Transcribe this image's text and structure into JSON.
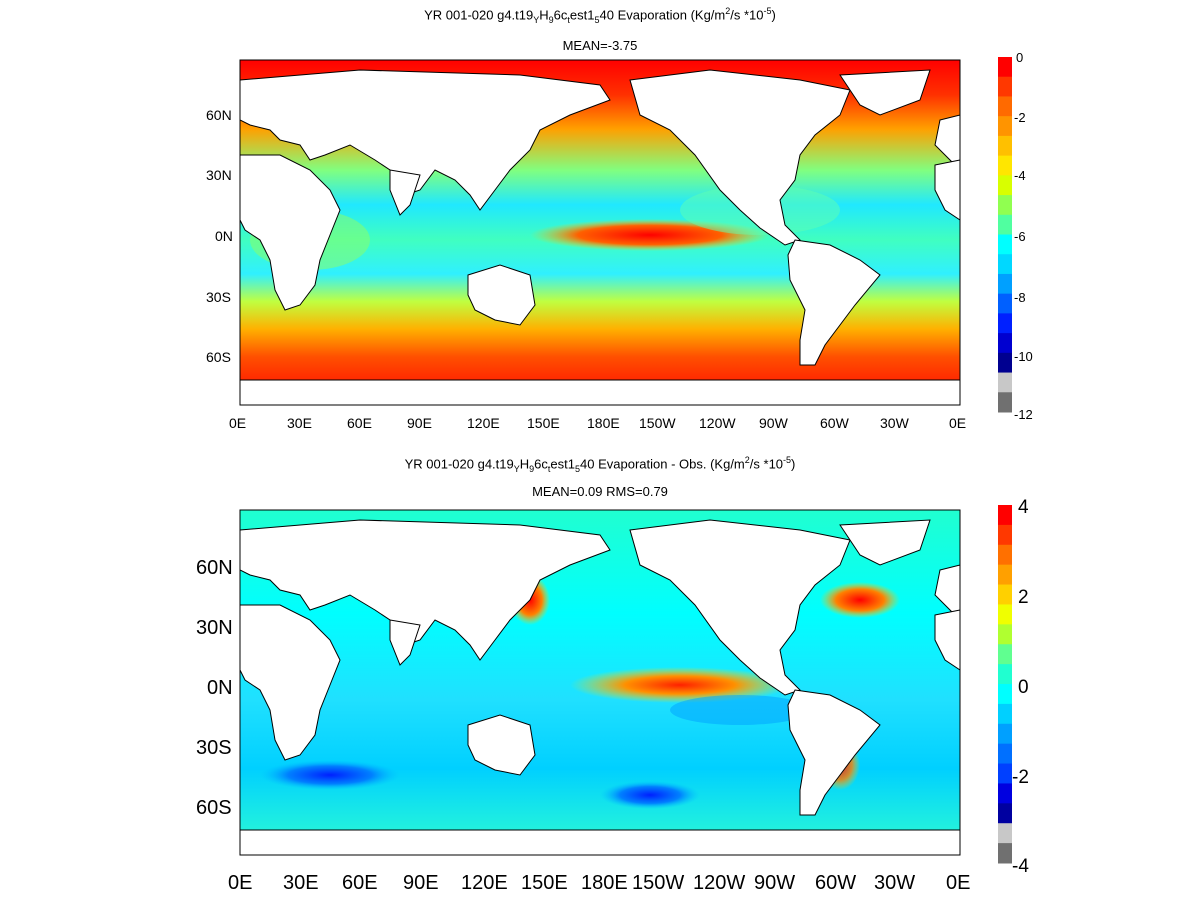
{
  "panel1": {
    "title_prefix": "YR 001-020 g4.t19",
    "title_mid1": "H",
    "title_mid2": "6c",
    "title_mid3": "est1",
    "title_mid4": "40  Evaporation (Kg/m",
    "title_tail": "/s *10",
    "title_sub_y": "Y",
    "title_sub_9": "9",
    "title_sub_t": "t",
    "title_sub_5": "5",
    "title_sup_2": "2",
    "title_sup_exp": "-5",
    "title_close": ")",
    "stats": "MEAN=-3.75",
    "lat_labels": [
      "60N",
      "30N",
      "0N",
      "30S",
      "60S"
    ],
    "lon_labels": [
      "0E",
      "30E",
      "60E",
      "90E",
      "120E",
      "150E",
      "180E",
      "150W",
      "120W",
      "90W",
      "60W",
      "30W",
      "0E"
    ],
    "colorbar_labels": [
      "0",
      "-2",
      "-4",
      "-6",
      "-8",
      "-10",
      "-12"
    ],
    "colorbar_colors": [
      "#ff0000",
      "#ff3800",
      "#ff6a00",
      "#ff9400",
      "#ffc000",
      "#ffe600",
      "#d8ff00",
      "#90ff50",
      "#50ffa0",
      "#00ffff",
      "#00d8ff",
      "#00a0ff",
      "#0060ff",
      "#0020ff",
      "#0000d0",
      "#000090",
      "#c8c8c8",
      "#707070"
    ]
  },
  "panel2": {
    "title_prefix": "YR 001-020 g4.t19",
    "title_mid1": "H",
    "title_mid2": "6c",
    "title_mid3": "est1",
    "title_mid4": "40 Evaporation - Obs. (Kg/m",
    "title_tail": "/s *10",
    "title_sub_y": "Y",
    "title_sub_9": "9",
    "title_sub_t": "t",
    "title_sub_5": "5",
    "title_sup_2": "2",
    "title_sup_exp": "-5",
    "title_close": ")",
    "stats": "MEAN=0.09   RMS=0.79",
    "lat_labels": [
      "60N",
      "30N",
      "0N",
      "30S",
      "60S"
    ],
    "lon_labels": [
      "0E",
      "30E",
      "60E",
      "90E",
      "120E",
      "150E",
      "180E",
      "150W",
      "120W",
      "90W",
      "60W",
      "30W",
      "0E"
    ],
    "colorbar_labels": [
      "4",
      "2",
      "0",
      "-2",
      "-4"
    ],
    "colorbar_colors": [
      "#ff0000",
      "#ff3800",
      "#ff7000",
      "#ffa000",
      "#ffd000",
      "#f0ff00",
      "#b0ff30",
      "#60ff90",
      "#20ffd0",
      "#00ffff",
      "#00d0ff",
      "#00a0ff",
      "#0070ff",
      "#0040ff",
      "#0000e0",
      "#0000a0",
      "#c8c8c8",
      "#707070"
    ]
  },
  "colors": {
    "ocean1": "#00ffff",
    "land": "#ffffff"
  }
}
